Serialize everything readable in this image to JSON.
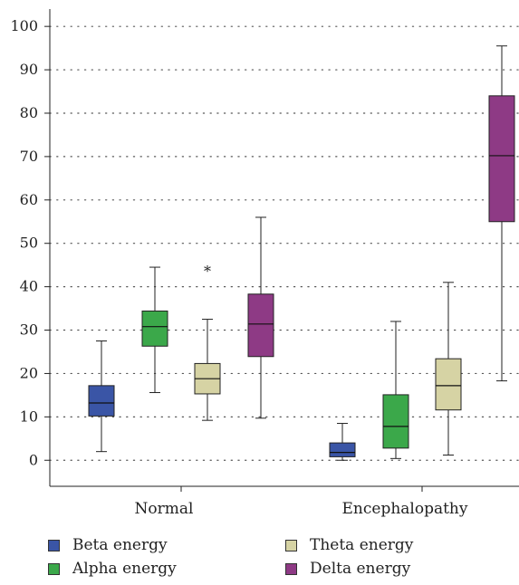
{
  "chart_data": {
    "type": "box",
    "categories": [
      "Normal",
      "Encephalopathy"
    ],
    "ylim": [
      -6,
      104
    ],
    "yticks": [
      0,
      10,
      20,
      30,
      40,
      50,
      60,
      70,
      80,
      90,
      100
    ],
    "grid": true,
    "legend_position": "bottom",
    "series": [
      {
        "name": "Beta energy",
        "color": "#3a55a6",
        "boxes": [
          {
            "min": 2,
            "q1": 10.2,
            "median": 13.2,
            "q3": 17.2,
            "max": 27.5
          },
          {
            "min": 0,
            "q1": 0.8,
            "median": 1.8,
            "q3": 4,
            "max": 8.5
          }
        ]
      },
      {
        "name": "Alpha energy",
        "color": "#3ba84a",
        "boxes": [
          {
            "min": 15.6,
            "q1": 26.3,
            "median": 30.8,
            "q3": 34.4,
            "max": 44.5
          },
          {
            "min": 0.4,
            "q1": 2.8,
            "median": 7.8,
            "q3": 15.1,
            "max": 32
          }
        ]
      },
      {
        "name": "Theta energy",
        "color": "#d6d3a4",
        "boxes": [
          {
            "min": 9.2,
            "q1": 15.3,
            "median": 18.8,
            "q3": 22.3,
            "max": 32.5,
            "outliers": [
              44.5
            ]
          },
          {
            "min": 1.2,
            "q1": 11.6,
            "median": 17.2,
            "q3": 23.4,
            "max": 41
          }
        ]
      },
      {
        "name": "Delta energy",
        "color": "#8e3a85",
        "boxes": [
          {
            "min": 9.7,
            "q1": 23.9,
            "median": 31.4,
            "q3": 38.3,
            "max": 56
          },
          {
            "min": 18.3,
            "q1": 55,
            "median": 70.2,
            "q3": 84,
            "max": 95.5
          }
        ]
      }
    ]
  }
}
